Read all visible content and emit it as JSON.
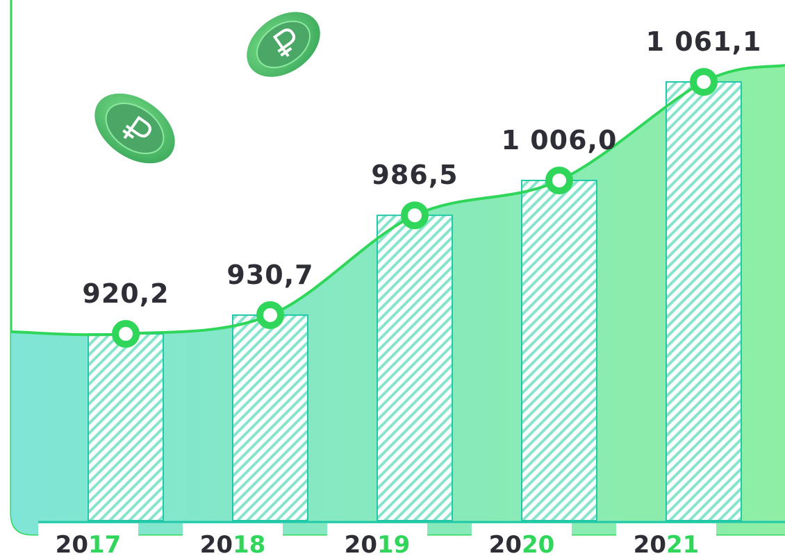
{
  "chart_data": {
    "type": "bar-line",
    "categories": [
      "2017",
      "2018",
      "2019",
      "2020",
      "2021"
    ],
    "values": [
      920.2,
      930.7,
      986.5,
      1006.0,
      1061.1
    ],
    "value_labels": [
      "920,2",
      "930,7",
      "986,5",
      "1 006,0",
      "1 061,1"
    ],
    "color": "#2fd65a"
  }
}
